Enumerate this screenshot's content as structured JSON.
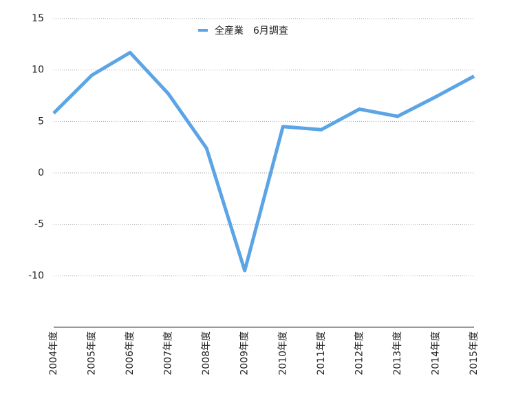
{
  "chart_data": {
    "type": "line",
    "categories": [
      "2004年度",
      "2005年度",
      "2006年度",
      "2007年度",
      "2008年度",
      "2009年度",
      "2010年度",
      "2011年度",
      "2012年度",
      "2013年度",
      "2014年度",
      "2015年度"
    ],
    "series": [
      {
        "name": "全産業　6月調査",
        "color": "#5ba4e5",
        "values": [
          5.8,
          9.5,
          11.7,
          7.7,
          2.4,
          -9.5,
          4.5,
          4.2,
          6.2,
          5.5,
          7.4,
          9.4
        ]
      }
    ],
    "ylim": [
      -15,
      15
    ],
    "yticks": [
      -10,
      -5,
      0,
      5,
      10,
      15
    ],
    "grid": true,
    "legend": "top"
  }
}
